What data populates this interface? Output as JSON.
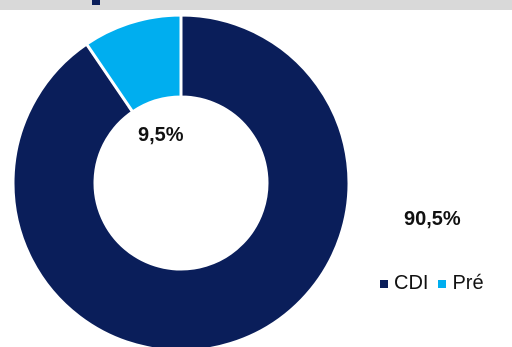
{
  "colors": {
    "cdi": "#0a1e5a",
    "pre": "#00aeef",
    "divider": "#ffffff"
  },
  "chart_data": {
    "type": "pie",
    "variant": "donut",
    "title": "",
    "legend_placement": "bottom-right",
    "series": [
      {
        "name": "CDI",
        "value": 90.5,
        "label": "90,5%"
      },
      {
        "name": "Pré",
        "value": 9.5,
        "label": "9,5%"
      }
    ]
  }
}
